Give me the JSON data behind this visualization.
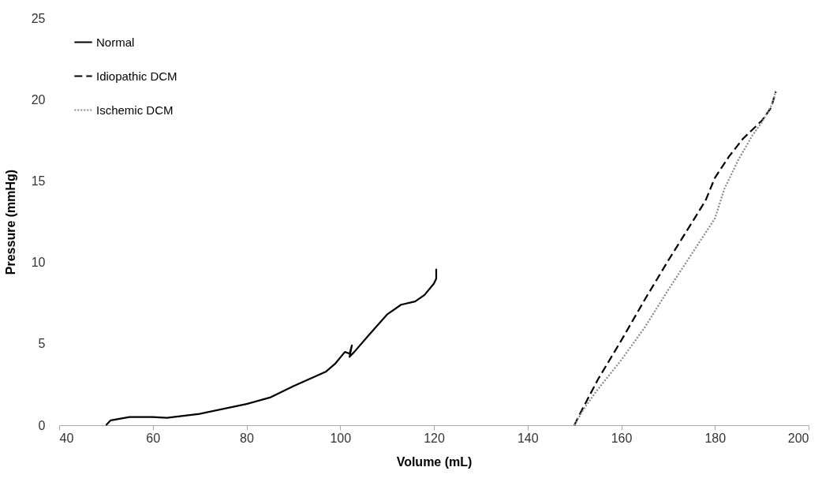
{
  "chart_data": {
    "type": "line",
    "xlabel": "Volume (mL)",
    "ylabel": "Pressure (mmHg)",
    "xlim": [
      40,
      200
    ],
    "xticks": [
      40,
      60,
      80,
      100,
      120,
      140,
      160,
      180,
      200
    ],
    "ylim": [
      0,
      25
    ],
    "yticks": [
      0,
      5,
      10,
      15,
      20,
      25
    ],
    "grid": false,
    "legend": "top left",
    "marker": "none",
    "series": [
      {
        "name": "Normal",
        "color": "#000000",
        "line_style": "solid",
        "x": [
          50,
          51,
          55,
          60,
          63,
          70,
          80,
          85,
          90,
          97,
          99,
          101,
          102,
          102.5,
          102,
          103,
          106,
          110,
          113,
          116,
          118,
          120,
          120.5,
          120.5
        ],
        "values": [
          0,
          0.3,
          0.5,
          0.5,
          0.45,
          0.7,
          1.3,
          1.7,
          2.4,
          3.3,
          3.8,
          4.5,
          4.4,
          4.9,
          4.2,
          4.5,
          5.5,
          6.8,
          7.4,
          7.6,
          8,
          8.7,
          9,
          9.6
        ]
      },
      {
        "name": "Idiopathic DCM",
        "color": "#000000",
        "line_style": "dashed",
        "x": [
          150,
          151,
          155,
          160,
          165,
          170,
          175,
          178,
          180,
          183,
          186,
          190,
          192,
          193
        ],
        "values": [
          0,
          0.6,
          2.8,
          5.2,
          7.7,
          10.1,
          12.4,
          13.8,
          15.2,
          16.5,
          17.6,
          18.7,
          19.5,
          20.5
        ]
      },
      {
        "name": "Ischemic DCM",
        "color": "#888888",
        "line_style": "dotted",
        "x": [
          150,
          152,
          155,
          160,
          165,
          170,
          175,
          180,
          182,
          185,
          188,
          190,
          192,
          193
        ],
        "values": [
          0,
          1,
          2.2,
          4,
          6,
          8.3,
          10.5,
          12.7,
          14.5,
          16.3,
          17.8,
          18.6,
          19.6,
          20.5
        ]
      }
    ]
  }
}
